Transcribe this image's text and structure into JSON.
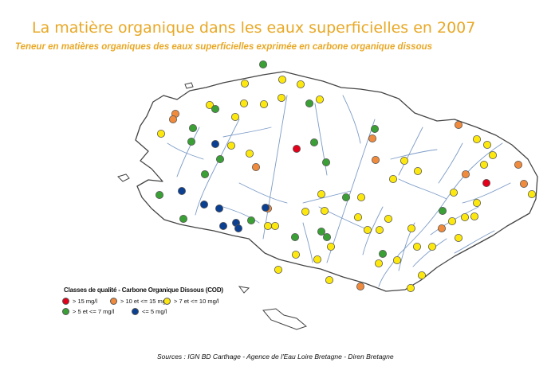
{
  "title": "La matière organique dans les eaux superficielles en 2007",
  "subtitle": "Teneur en matières organiques des eaux superficielles exprimée en carbone organique dissous",
  "legend": {
    "title": "Classes de qualité - Carbone Organique Dissous (COD)",
    "items": [
      {
        "label": "> 15 mg/l",
        "color": "#e3001b"
      },
      {
        "label": "> 10 et <= 15 mg/l",
        "color": "#f08a3c"
      },
      {
        "label": "> 7 et <= 10 mg/l",
        "color": "#fce80e"
      },
      {
        "label": "> 5 et <= 7 mg/l",
        "color": "#3a9f35"
      },
      {
        "label": "<= 5 mg/l",
        "color": "#0b3f91"
      }
    ]
  },
  "sources": "Sources : IGN BD Carthage - Agence de l'Eau Loire Bretagne - Diren Bretagne",
  "colors": {
    "title": "#e8a825",
    "red": "#e3001b",
    "orange": "#f08a3c",
    "yellow": "#fce80e",
    "green": "#3a9f35",
    "blue": "#0b3f91",
    "river": "#7d9cc8",
    "coast": "#444444"
  }
}
